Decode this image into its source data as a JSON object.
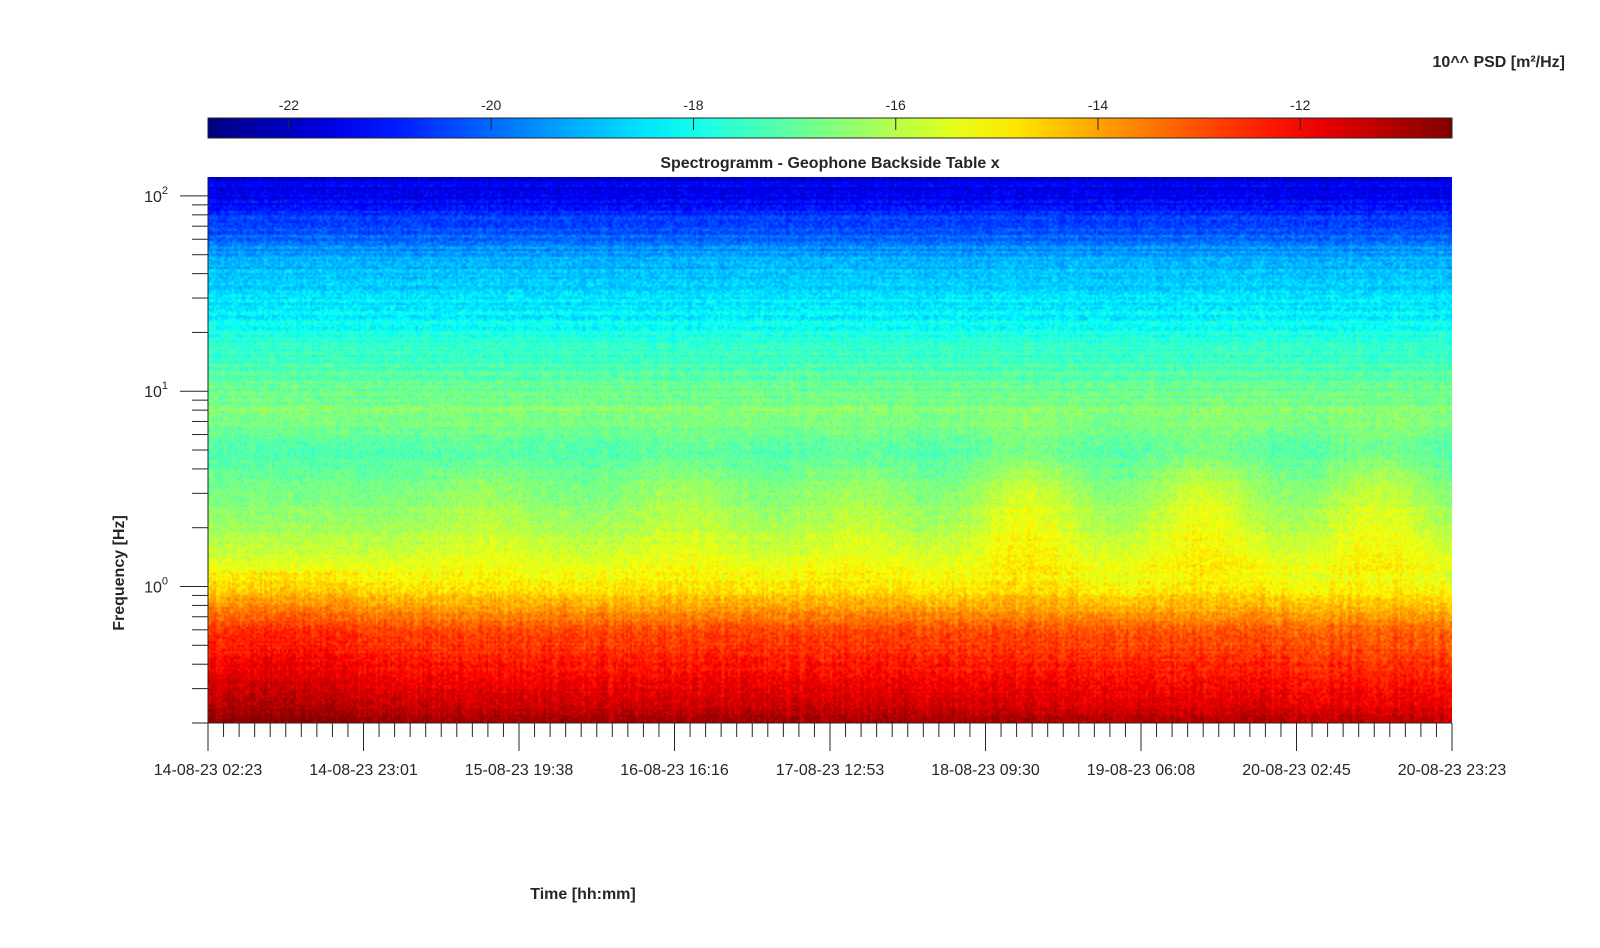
{
  "chart_data": {
    "type": "heatmap",
    "title": "Spectrogramm - Geophone Backside Table x",
    "xlabel": "Time [hh:mm]",
    "ylabel": "Frequency [Hz]",
    "x_tick_labels": [
      "14-08-23 02:23",
      "14-08-23 23:01",
      "15-08-23 19:38",
      "16-08-23 16:16",
      "17-08-23 12:53",
      "18-08-23 09:30",
      "19-08-23 06:08",
      "20-08-23 02:45",
      "20-08-23 23:23"
    ],
    "x_range": [
      "14-08-23 02:23",
      "20-08-23 23:23"
    ],
    "y_scale": "log",
    "y_range": [
      0.2,
      125
    ],
    "y_ticks": [
      {
        "base": "10",
        "exp": "0"
      },
      {
        "base": "10",
        "exp": "1"
      },
      {
        "base": "10",
        "exp": "2"
      }
    ],
    "colorbar": {
      "label": "10^^ PSD [m²/Hz]",
      "colormap": "jet",
      "range": [
        -22.8,
        -10.5
      ],
      "ticks": [
        "-22",
        "-20",
        "-18",
        "-16",
        "-14",
        "-12"
      ],
      "location": "top"
    },
    "approx_levels": [
      {
        "freq_hz": 100,
        "log_psd": -21.5
      },
      {
        "freq_hz": 50,
        "log_psd": -19.3
      },
      {
        "freq_hz": 20,
        "log_psd": -18.0
      },
      {
        "freq_hz": 12,
        "log_psd": -17.1
      },
      {
        "freq_hz": 7.5,
        "log_psd": -16.6
      },
      {
        "freq_hz": 5,
        "log_psd": -17.3
      },
      {
        "freq_hz": 2,
        "log_psd": -16.2
      },
      {
        "freq_hz": 1,
        "log_psd": -15.0
      },
      {
        "freq_hz": 0.6,
        "log_psd": -13.0
      },
      {
        "freq_hz": 0.3,
        "log_psd": -11.8
      },
      {
        "freq_hz": 0.2,
        "log_psd": -11.0
      }
    ]
  }
}
